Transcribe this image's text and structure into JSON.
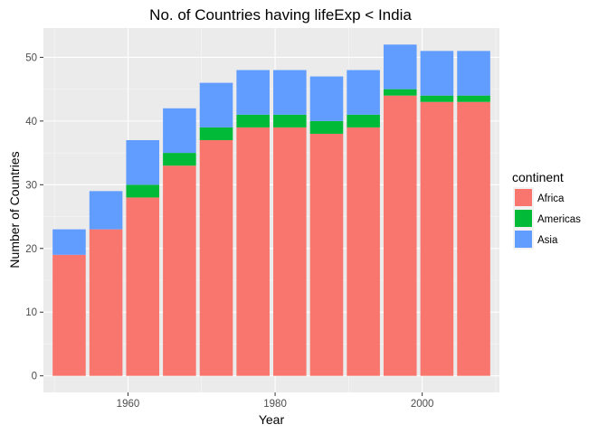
{
  "chart_data": {
    "type": "bar",
    "stacked": true,
    "title": "No. of Countries having lifeExp < India",
    "xlabel": "Year",
    "ylabel": "Number of Countries",
    "x": [
      1952,
      1957,
      1962,
      1967,
      1972,
      1977,
      1982,
      1987,
      1992,
      1997,
      2002,
      2007
    ],
    "x_ticks": [
      1960,
      1980,
      2000
    ],
    "x_tick_labels": [
      "1960",
      "1980",
      "2000"
    ],
    "xlim": [
      1948.5,
      2010.5
    ],
    "y_ticks": [
      0,
      10,
      20,
      30,
      40,
      50
    ],
    "y_tick_labels": [
      "0",
      "10",
      "20",
      "30",
      "40",
      "50"
    ],
    "ylim": [
      -2.6,
      54.6
    ],
    "grid": true,
    "legend": {
      "title": "continent",
      "position": "right"
    },
    "series": [
      {
        "name": "Africa",
        "color": "#F8766D",
        "values": [
          19,
          23,
          28,
          33,
          37,
          39,
          39,
          38,
          39,
          44,
          43,
          43
        ]
      },
      {
        "name": "Americas",
        "color": "#00BA38",
        "values": [
          0,
          0,
          2,
          2,
          2,
          2,
          2,
          2,
          2,
          1,
          1,
          1
        ]
      },
      {
        "name": "Asia",
        "color": "#619CFF",
        "values": [
          4,
          6,
          7,
          7,
          7,
          7,
          7,
          7,
          7,
          7,
          7,
          7
        ]
      }
    ]
  }
}
